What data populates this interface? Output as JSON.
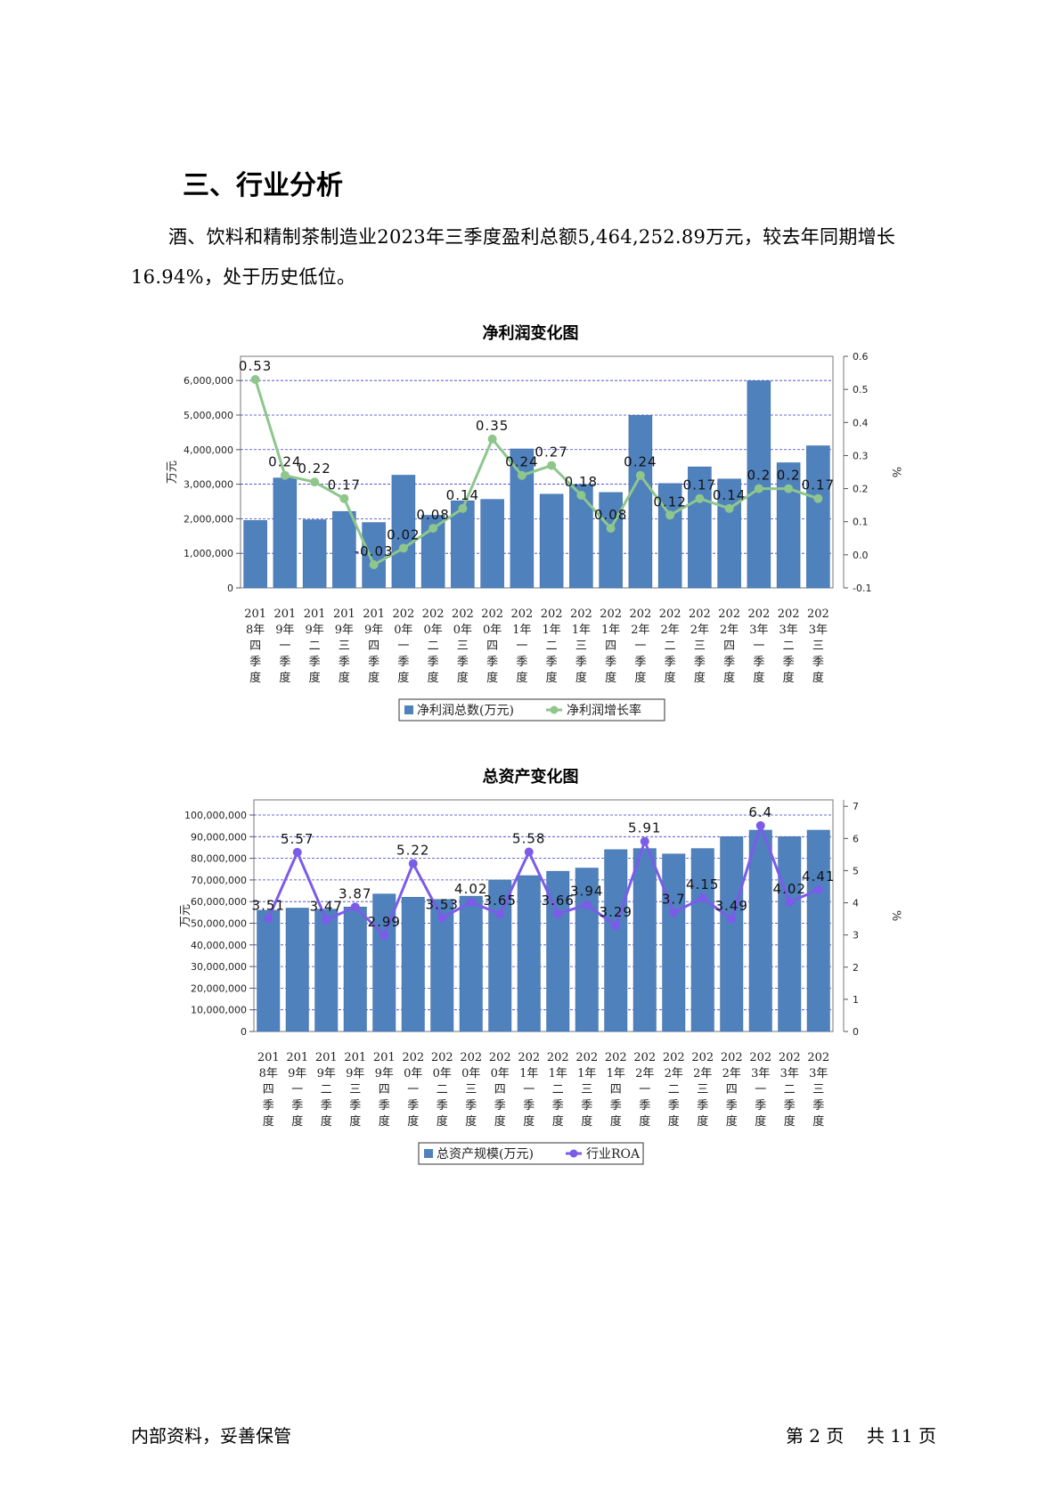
{
  "section": {
    "title": "三、行业分析"
  },
  "paragraph": "酒、饮料和精制茶制造业2023年三季度盈利总额5,464,252.89万元，较去年同期增长16.94%，处于历史低位。",
  "footer": {
    "left": "内部资料，妥善保管",
    "page_label_prefix": "第",
    "page_current": "2",
    "page_label_mid": "页",
    "total_prefix": "共",
    "page_total": "11",
    "total_suffix": "页"
  },
  "colors": {
    "bar": "#4f81bd",
    "line1": "#8ec68c",
    "line2": "#7b5ce8",
    "grid": "#3a3ad0"
  },
  "chart_data": [
    {
      "type": "bar",
      "title": "净利润变化图",
      "categories": [
        "2018年四季度",
        "2019年一季度",
        "2019年二季度",
        "2019年三季度",
        "2019年四季度",
        "2020年一季度",
        "2020年二季度",
        "2020年三季度",
        "2020年四季度",
        "2021年一季度",
        "2021年二季度",
        "2021年三季度",
        "2021年四季度",
        "2022年一季度",
        "2022年二季度",
        "2022年三季度",
        "2022年四季度",
        "2023年一季度",
        "2023年二季度",
        "2023年三季度"
      ],
      "tick_labels": [
        [
          "201",
          "8年",
          "四",
          "季",
          "度"
        ],
        [
          "201",
          "9年",
          "一",
          "季",
          "度"
        ],
        [
          "201",
          "9年",
          "二",
          "季",
          "度"
        ],
        [
          "201",
          "9年",
          "三",
          "季",
          "度"
        ],
        [
          "201",
          "9年",
          "四",
          "季",
          "度"
        ],
        [
          "202",
          "0年",
          "一",
          "季",
          "度"
        ],
        [
          "202",
          "0年",
          "二",
          "季",
          "度"
        ],
        [
          "202",
          "0年",
          "三",
          "季",
          "度"
        ],
        [
          "202",
          "0年",
          "四",
          "季",
          "度"
        ],
        [
          "202",
          "1年",
          "一",
          "季",
          "度"
        ],
        [
          "202",
          "1年",
          "二",
          "季",
          "度"
        ],
        [
          "202",
          "1年",
          "三",
          "季",
          "度"
        ],
        [
          "202",
          "1年",
          "四",
          "季",
          "度"
        ],
        [
          "202",
          "2年",
          "一",
          "季",
          "度"
        ],
        [
          "202",
          "2年",
          "二",
          "季",
          "度"
        ],
        [
          "202",
          "2年",
          "三",
          "季",
          "度"
        ],
        [
          "202",
          "2年",
          "四",
          "季",
          "度"
        ],
        [
          "202",
          "3年",
          "一",
          "季",
          "度"
        ],
        [
          "202",
          "3年",
          "二",
          "季",
          "度"
        ],
        [
          "202",
          "3年",
          "三",
          "季",
          "度"
        ]
      ],
      "series": [
        {
          "name": "净利润总数(万元)",
          "kind": "bar",
          "values": [
            1950000,
            3180000,
            1970000,
            2210000,
            1890000,
            3260000,
            2100000,
            2520000,
            2560000,
            4020000,
            2710000,
            2990000,
            2760000,
            4990000,
            3020000,
            3500000,
            3150000,
            5990000,
            3620000,
            4110000
          ]
        },
        {
          "name": "净利润增长率",
          "kind": "line",
          "values": [
            0.53,
            0.24,
            0.22,
            0.17,
            -0.03,
            0.02,
            0.08,
            0.14,
            0.35,
            0.24,
            0.27,
            0.18,
            0.08,
            0.24,
            0.12,
            0.17,
            0.14,
            0.2,
            0.2,
            0.17
          ],
          "labels": [
            "0.53",
            "0.24",
            "0.22",
            "0.17",
            "-0.03",
            "0.02",
            "0.08",
            "0.14",
            "0.35",
            "0.24",
            "0.27",
            "0.18",
            "0.08",
            "0.24",
            "0.12",
            "0.17",
            "0.14",
            "0.2",
            "0.2",
            "0.17"
          ]
        }
      ],
      "ylabel": "万元",
      "y2label": "%",
      "ylim": [
        0,
        6700000
      ],
      "yticks": [
        0,
        1000000,
        2000000,
        3000000,
        4000000,
        5000000,
        6000000
      ],
      "ytick_labels": [
        "0",
        "1,000,000",
        "2,000,000",
        "3,000,000",
        "4,000,000",
        "5,000,000",
        "6,000,000"
      ],
      "y2lim": [
        -0.1,
        0.6
      ],
      "y2ticks": [
        -0.1,
        0,
        0.1,
        0.2,
        0.3,
        0.4,
        0.5,
        0.6
      ],
      "y2tick_labels": [
        "-0.1",
        "0.0",
        "0.1",
        "0.2",
        "0.3",
        "0.4",
        "0.5",
        "0.6"
      ],
      "grid": true,
      "legend": "bottom"
    },
    {
      "type": "bar",
      "title": "总资产变化图",
      "categories": [
        "2018年四季度",
        "2019年一季度",
        "2019年二季度",
        "2019年三季度",
        "2019年四季度",
        "2020年一季度",
        "2020年二季度",
        "2020年三季度",
        "2020年四季度",
        "2021年一季度",
        "2021年二季度",
        "2021年三季度",
        "2021年四季度",
        "2022年一季度",
        "2022年二季度",
        "2022年三季度",
        "2022年四季度",
        "2023年一季度",
        "2023年二季度",
        "2023年三季度"
      ],
      "tick_labels": [
        [
          "201",
          "8年",
          "四",
          "季",
          "度"
        ],
        [
          "201",
          "9年",
          "一",
          "季",
          "度"
        ],
        [
          "201",
          "9年",
          "二",
          "季",
          "度"
        ],
        [
          "201",
          "9年",
          "三",
          "季",
          "度"
        ],
        [
          "201",
          "9年",
          "四",
          "季",
          "度"
        ],
        [
          "202",
          "0年",
          "一",
          "季",
          "度"
        ],
        [
          "202",
          "0年",
          "二",
          "季",
          "度"
        ],
        [
          "202",
          "0年",
          "三",
          "季",
          "度"
        ],
        [
          "202",
          "0年",
          "四",
          "季",
          "度"
        ],
        [
          "202",
          "1年",
          "一",
          "季",
          "度"
        ],
        [
          "202",
          "1年",
          "二",
          "季",
          "度"
        ],
        [
          "202",
          "1年",
          "三",
          "季",
          "度"
        ],
        [
          "202",
          "1年",
          "四",
          "季",
          "度"
        ],
        [
          "202",
          "2年",
          "一",
          "季",
          "度"
        ],
        [
          "202",
          "2年",
          "二",
          "季",
          "度"
        ],
        [
          "202",
          "2年",
          "三",
          "季",
          "度"
        ],
        [
          "202",
          "2年",
          "四",
          "季",
          "度"
        ],
        [
          "202",
          "3年",
          "一",
          "季",
          "度"
        ],
        [
          "202",
          "3年",
          "二",
          "季",
          "度"
        ],
        [
          "202",
          "3年",
          "三",
          "季",
          "度"
        ]
      ],
      "series": [
        {
          "name": "总资产规模(万元)",
          "kind": "bar",
          "values": [
            56000000,
            57000000,
            56500000,
            57500000,
            63500000,
            62000000,
            61000000,
            62500000,
            70000000,
            72000000,
            74000000,
            75500000,
            84000000,
            84500000,
            82000000,
            84500000,
            90000000,
            93000000,
            90000000,
            93000000
          ]
        },
        {
          "name": "行业ROA",
          "kind": "line",
          "values": [
            3.51,
            5.57,
            3.47,
            3.87,
            2.99,
            5.22,
            3.53,
            4.02,
            3.65,
            5.58,
            3.66,
            3.94,
            3.29,
            5.91,
            3.7,
            4.15,
            3.49,
            6.4,
            4.02,
            4.41
          ],
          "labels": [
            "3.51",
            "5.57",
            "3.47",
            "3.87",
            "2.99",
            "5.22",
            "3.53",
            "4.02",
            "3.65",
            "5.58",
            "3.66",
            "3.94",
            "3.29",
            "5.91",
            "3.7",
            "4.15",
            "3.49",
            "6.4",
            "4.02",
            "4.41"
          ]
        }
      ],
      "ylabel": "万元",
      "y2label": "%",
      "ylim": [
        0,
        107000000
      ],
      "yticks": [
        0,
        10000000,
        20000000,
        30000000,
        40000000,
        50000000,
        60000000,
        70000000,
        80000000,
        90000000,
        100000000
      ],
      "ytick_labels": [
        "0",
        "10,000,000",
        "20,000,000",
        "30,000,000",
        "40,000,000",
        "50,000,000",
        "60,000,000",
        "70,000,000",
        "80,000,000",
        "90,000,000",
        "100,000,000"
      ],
      "y2lim": [
        0,
        7.2
      ],
      "y2ticks": [
        0,
        1,
        2,
        3,
        4,
        5,
        6,
        7
      ],
      "y2tick_labels": [
        "0",
        "1",
        "2",
        "3",
        "4",
        "5",
        "6",
        "7"
      ],
      "grid": true,
      "legend": "bottom"
    }
  ]
}
